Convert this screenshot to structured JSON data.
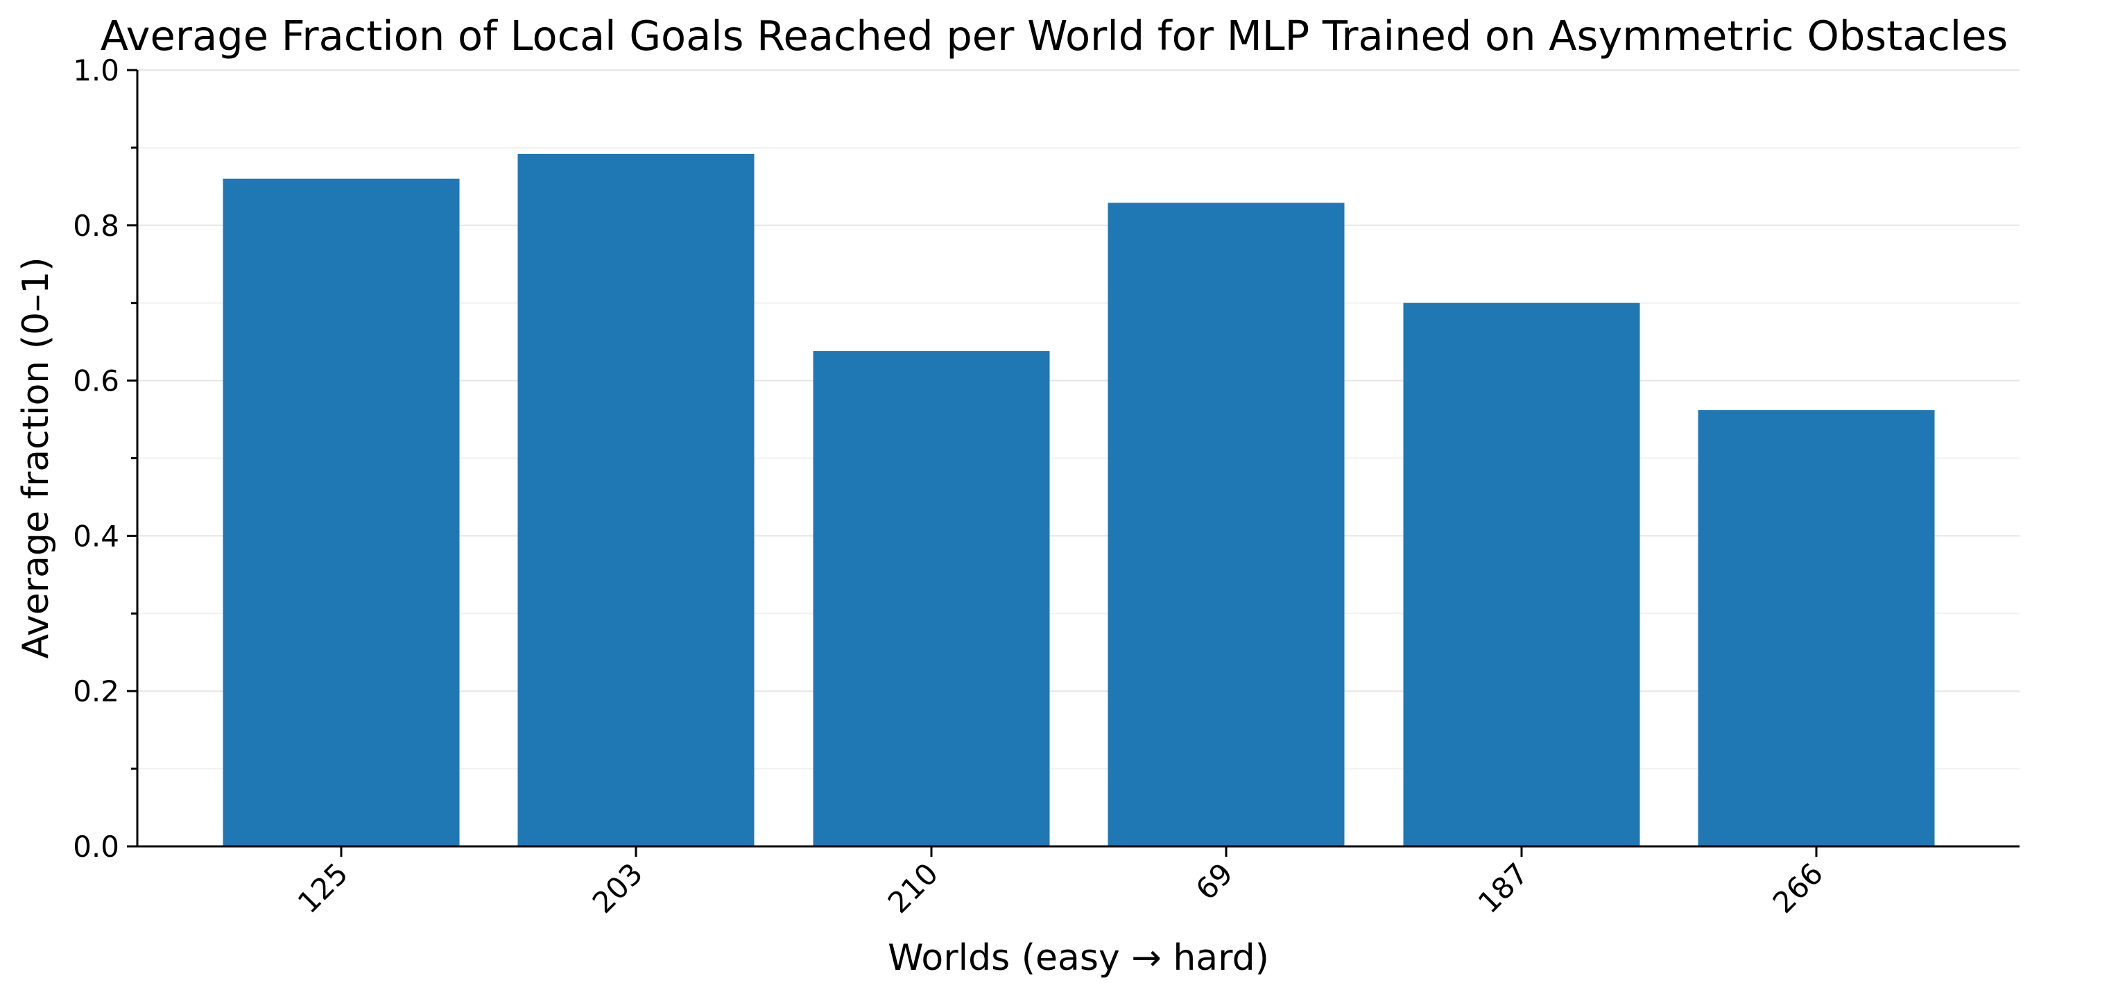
{
  "chart_data": {
    "type": "bar",
    "title": "Average Fraction of Local Goals Reached per World for MLP Trained on Asymmetric Obstacles",
    "xlabel": "Worlds (easy → hard)",
    "ylabel": "Average fraction (0–1)",
    "categories": [
      "125",
      "203",
      "210",
      "69",
      "187",
      "266"
    ],
    "values": [
      0.86,
      0.892,
      0.638,
      0.829,
      0.7,
      0.562
    ],
    "ylim": [
      0,
      1.0
    ],
    "yticks": [
      "0.0",
      "0.2",
      "0.4",
      "0.6",
      "0.8",
      "1.0"
    ],
    "grid": true,
    "bar_color": "#1f77b4"
  }
}
